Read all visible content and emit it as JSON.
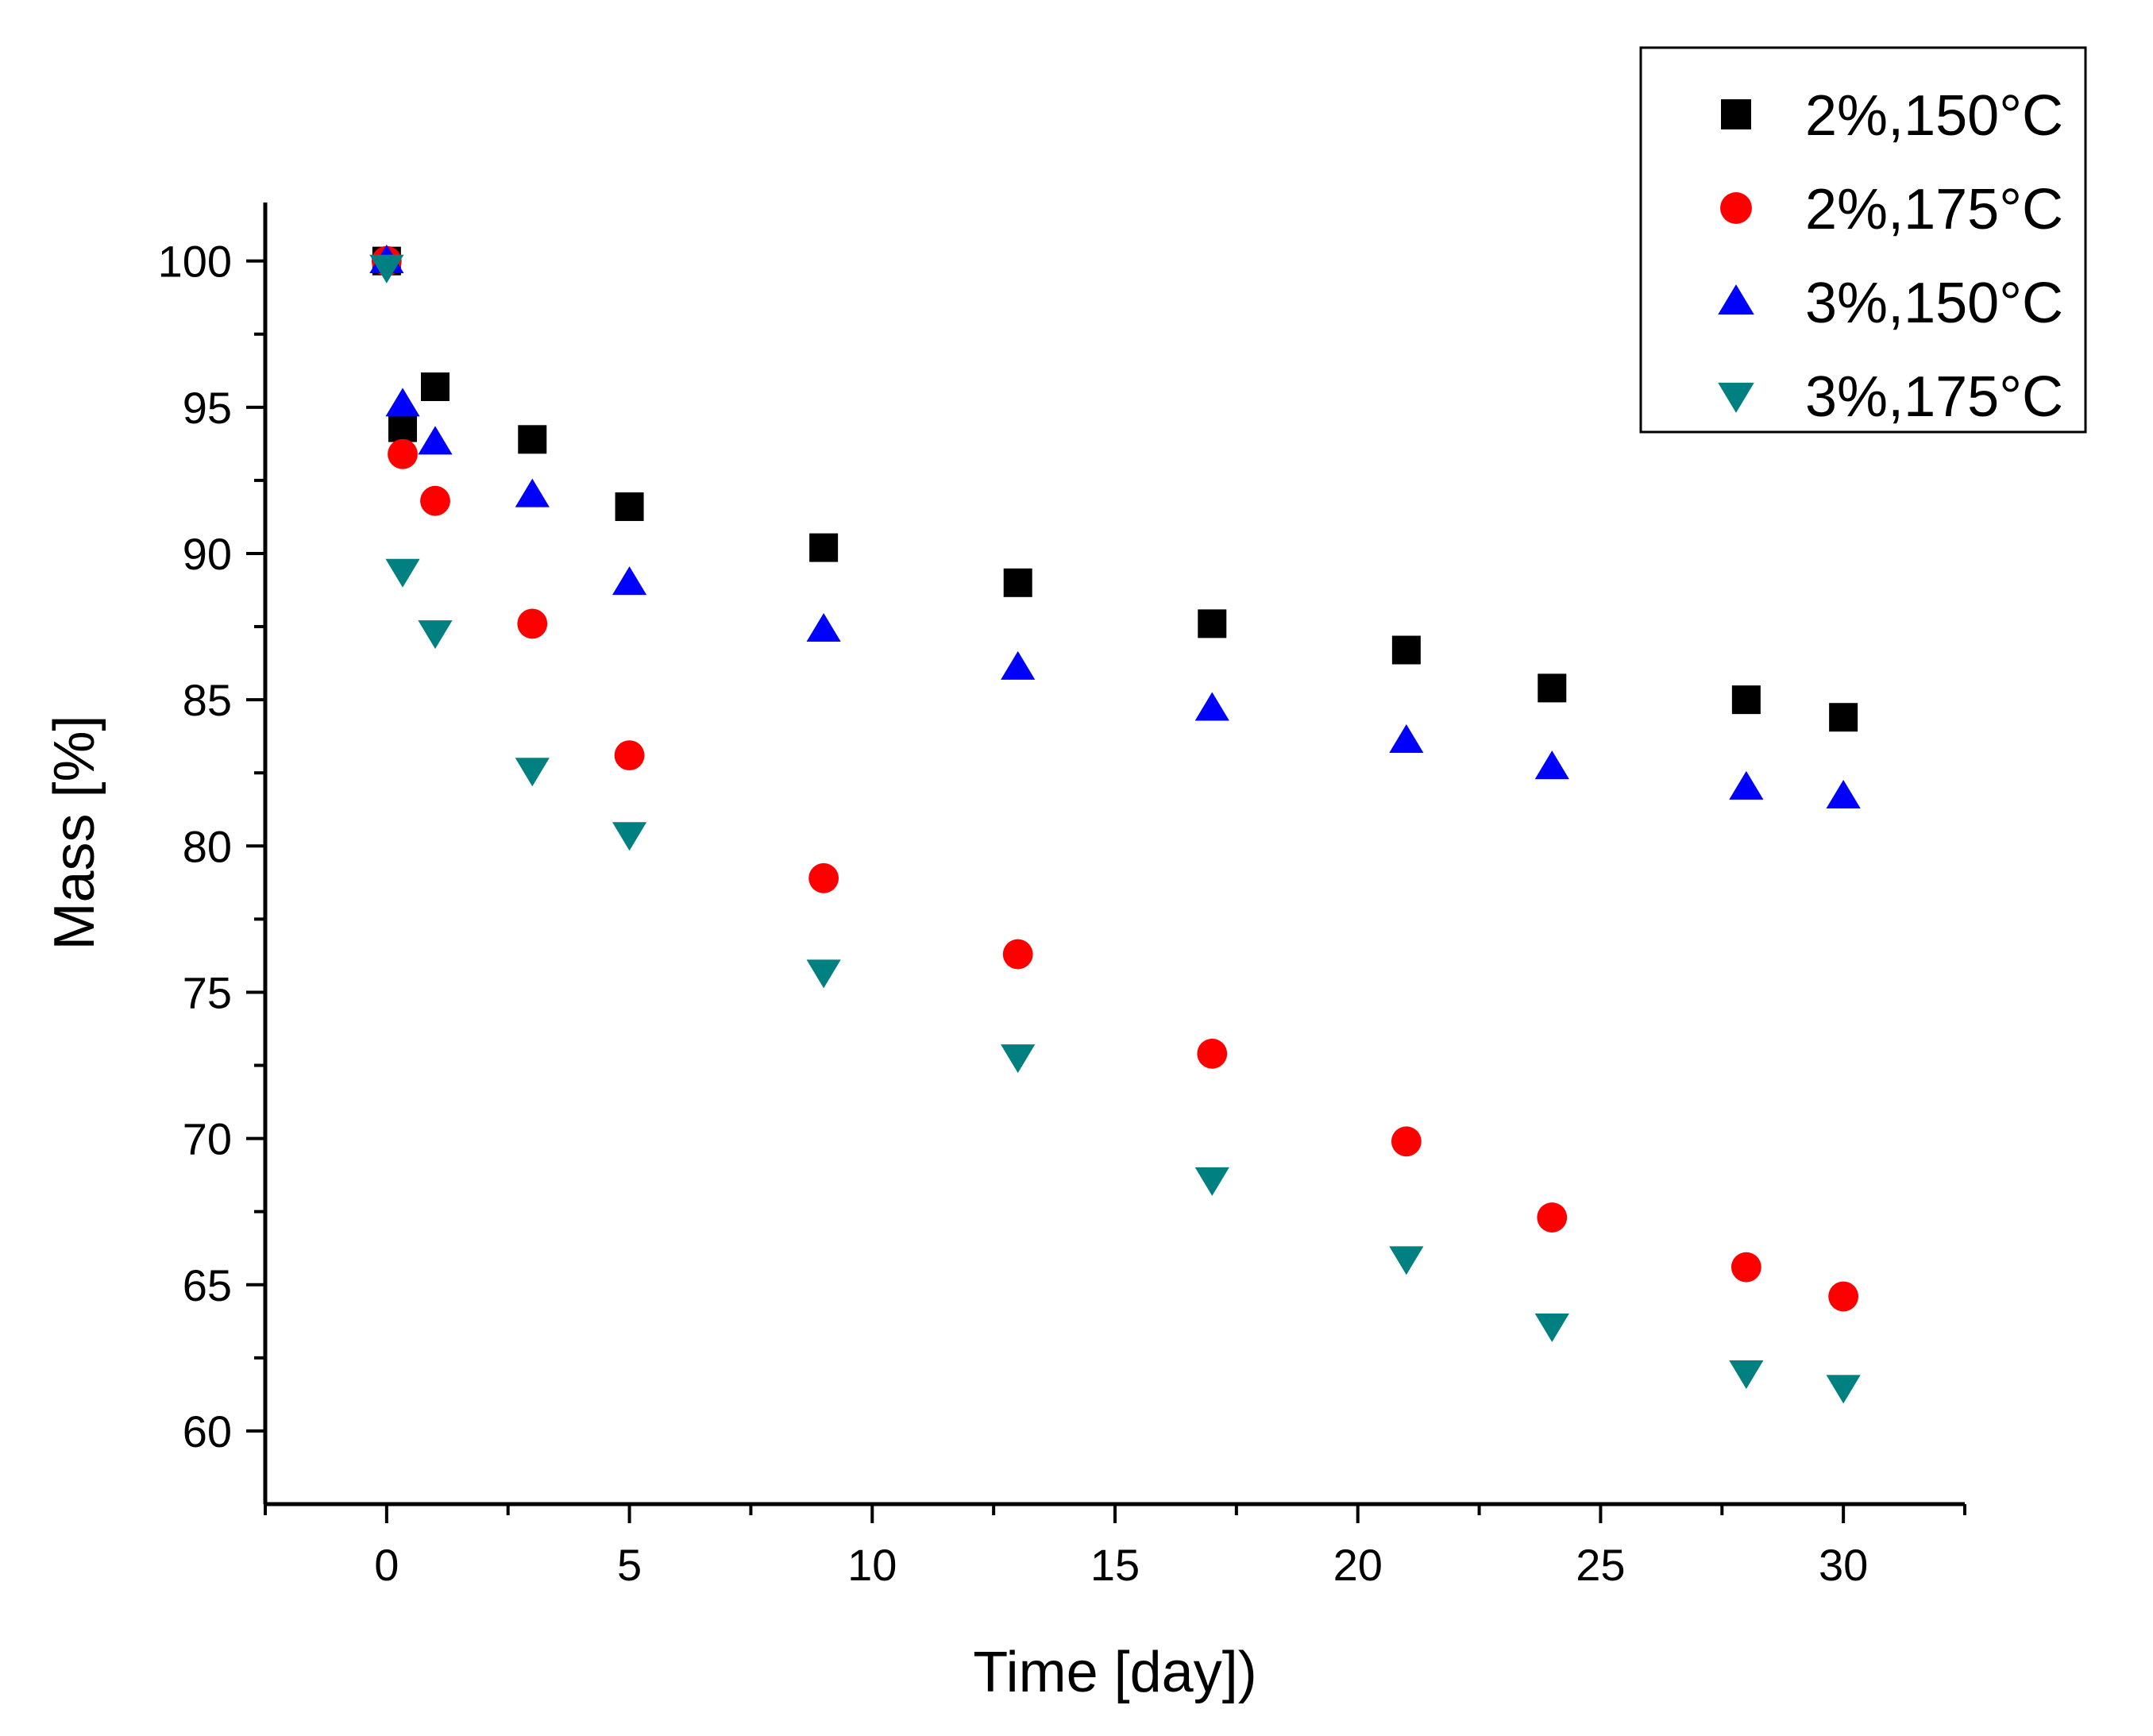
{
  "chart_data": {
    "type": "scatter",
    "title": "",
    "xlabel": "Time [day])",
    "ylabel": "Mass [%]",
    "xlim": [
      -2.5,
      32.5
    ],
    "ylim": [
      57.5,
      102.0
    ],
    "x_ticks": [
      0,
      5,
      10,
      15,
      20,
      25,
      30
    ],
    "x_tick_labels": [
      "0",
      "5",
      "10",
      "15",
      "20",
      "25",
      "30"
    ],
    "y_ticks": [
      60,
      65,
      70,
      75,
      80,
      85,
      90,
      95,
      100
    ],
    "y_tick_labels": [
      "60",
      "65",
      "70",
      "75",
      "80",
      "85",
      "90",
      "95",
      "100"
    ],
    "grid": false,
    "legend_position": "top-right",
    "series": [
      {
        "name": "2%,150",
        "unit": "°C",
        "marker": "square",
        "color": "#000000",
        "x": [
          0,
          0.33,
          1,
          3,
          5,
          9,
          13,
          17,
          21,
          24,
          28,
          30
        ],
        "y": [
          100,
          94.3,
          95.7,
          93.9,
          91.6,
          90.2,
          89.0,
          87.6,
          86.7,
          85.4,
          85.0,
          84.4
        ]
      },
      {
        "name": "2%,175",
        "unit": "°C",
        "marker": "circle",
        "color": "#ff0000",
        "x": [
          0,
          0.33,
          1,
          3,
          5,
          9,
          13,
          17,
          21,
          24,
          28,
          30
        ],
        "y": [
          100,
          93.4,
          91.8,
          87.6,
          83.1,
          78.9,
          76.3,
          72.9,
          69.9,
          67.3,
          65.6,
          64.6
        ]
      },
      {
        "name": "3%,150",
        "unit": "°C",
        "marker": "triangle-up",
        "color": "#0000ff",
        "x": [
          0,
          0.33,
          1,
          3,
          5,
          9,
          13,
          17,
          21,
          24,
          28,
          30
        ],
        "y": [
          100,
          95.1,
          93.8,
          92.0,
          89.0,
          87.4,
          86.1,
          84.7,
          83.6,
          82.7,
          82.0,
          81.7
        ]
      },
      {
        "name": "3%,175",
        "unit": "°C",
        "marker": "triangle-down",
        "color": "#008080",
        "x": [
          0,
          0.33,
          1,
          3,
          5,
          9,
          13,
          17,
          21,
          24,
          28,
          30
        ],
        "y": [
          99.8,
          89.4,
          87.3,
          82.6,
          80.4,
          75.7,
          72.8,
          68.6,
          65.9,
          63.6,
          62.0,
          61.5
        ]
      }
    ]
  }
}
